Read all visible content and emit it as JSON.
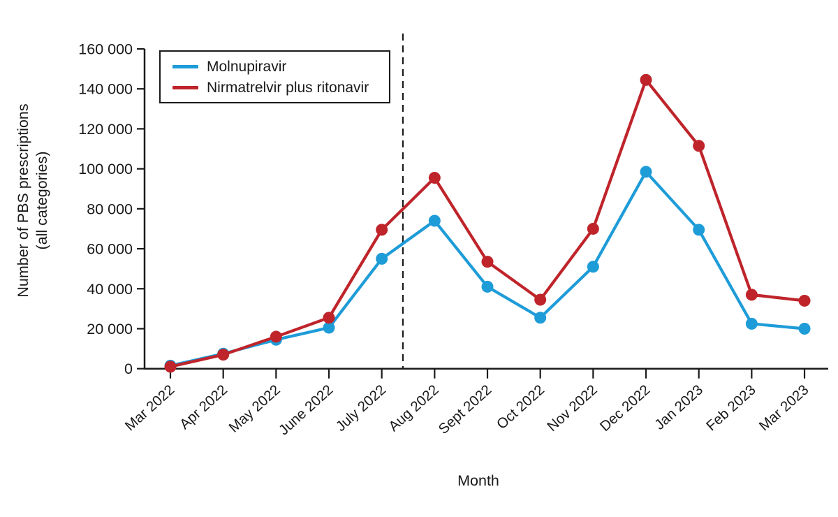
{
  "chart_data": {
    "type": "line",
    "title": "",
    "xlabel": "Month",
    "ylabel": "Number of PBS prescriptions (all categories)",
    "ylabel_lines": [
      "Number of PBS prescriptions",
      "(all categories)"
    ],
    "categories": [
      "Mar 2022",
      "Apr 2022",
      "May 2022",
      "June 2022",
      "July 2022",
      "Aug 2022",
      "Sept 2022",
      "Oct 2022",
      "Nov 2022",
      "Dec 2022",
      "Jan 2023",
      "Feb 2023",
      "Mar 2023"
    ],
    "series": [
      {
        "name": "Molnupiravir",
        "color": "#1e9cd8",
        "values": [
          1500,
          7500,
          14500,
          20500,
          55000,
          74000,
          41000,
          25500,
          51000,
          98500,
          69500,
          22500,
          20000
        ]
      },
      {
        "name": "Nirmatrelvir plus ritonavir",
        "color": "#bf242b",
        "values": [
          1000,
          7000,
          16000,
          25500,
          69500,
          95500,
          53500,
          34500,
          70000,
          144500,
          111500,
          37000,
          34000
        ]
      }
    ],
    "ylim": [
      0,
      160000
    ],
    "ytick_values": [
      0,
      20000,
      40000,
      60000,
      80000,
      100000,
      120000,
      140000,
      160000
    ],
    "ytick_labels": [
      "0",
      "20 000",
      "40 000",
      "60 000",
      "80 000",
      "100 000",
      "120 000",
      "140 000",
      "160 000"
    ],
    "grid": false,
    "legend_position": "top-left",
    "annotations": [
      {
        "type": "vertical-dashed-line",
        "between_categories": [
          "July 2022",
          "Aug 2022"
        ],
        "position_index": 4.4,
        "color": "#1a1a1a"
      }
    ],
    "axis_color": "#1a1a1a",
    "background": "#ffffff"
  }
}
